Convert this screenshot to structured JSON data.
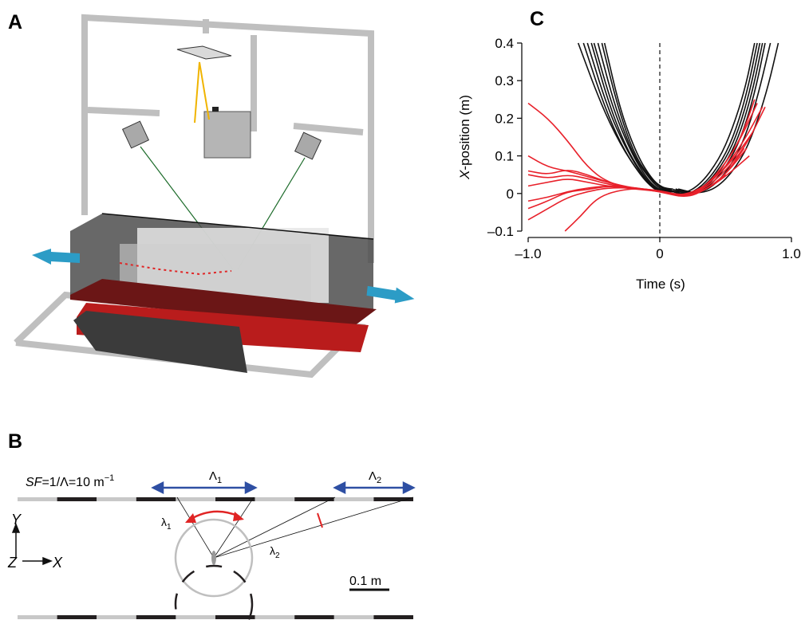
{
  "panels": {
    "a": "A",
    "b": "B",
    "c": "C"
  },
  "panel_b": {
    "sf_prefix": "SF",
    "sf_rest": "=1/Λ=10 m",
    "sf_exp": "−1",
    "Lambda1": "Λ",
    "Lambda1_sub": "1",
    "Lambda2": "Λ",
    "Lambda2_sub": "2",
    "lambda1": "λ",
    "lambda1_sub": "1",
    "lambda2": "λ",
    "lambda2_sub": "2",
    "axis_y": "Y",
    "axis_z": "Z",
    "axis_x": "X",
    "scale_bar": "0.1 m",
    "colors": {
      "dark": "#231f20",
      "light": "#c8c8c8",
      "arrow_blue": "#2e4fa3",
      "arrow_red": "#e02424"
    }
  },
  "chart_data": {
    "type": "line",
    "xlabel": "Time (s)",
    "ylabel_italic": "X",
    "ylabel_rest": "-position (m)",
    "xlim": [
      -1.0,
      1.0
    ],
    "ylim": [
      -0.1,
      0.4
    ],
    "xticks": [
      -1.0,
      0,
      1.0
    ],
    "xtick_labels": [
      "–1.0",
      "0",
      "1.0"
    ],
    "yticks": [
      -0.1,
      0,
      0.1,
      0.2,
      0.3,
      0.4
    ],
    "ytick_labels": [
      "–0.1",
      "0",
      "0.1",
      "0.2",
      "0.3",
      "0.4"
    ],
    "vline_x": 0,
    "colors": {
      "black_series": "#111111",
      "red_series": "#e8202a"
    },
    "series": [
      {
        "color": "black",
        "x": [
          -0.62,
          -0.45,
          -0.3,
          -0.15,
          -0.05,
          0.0,
          0.05,
          0.15
        ],
        "y": [
          0.4,
          0.24,
          0.13,
          0.05,
          0.015,
          0.008,
          0.005,
          0.005
        ]
      },
      {
        "color": "black",
        "x": [
          -0.58,
          -0.42,
          -0.28,
          -0.14,
          -0.05,
          0.0,
          0.05
        ],
        "y": [
          0.4,
          0.23,
          0.12,
          0.045,
          0.013,
          0.006,
          0.005
        ]
      },
      {
        "color": "black",
        "x": [
          -0.55,
          -0.4,
          -0.26,
          -0.12,
          -0.04,
          0.0,
          0.05
        ],
        "y": [
          0.4,
          0.23,
          0.12,
          0.04,
          0.012,
          0.006,
          0.004
        ]
      },
      {
        "color": "black",
        "x": [
          -0.52,
          -0.38,
          -0.24,
          -0.11,
          -0.03,
          0.02,
          0.06
        ],
        "y": [
          0.4,
          0.23,
          0.11,
          0.04,
          0.012,
          0.006,
          0.005
        ]
      },
      {
        "color": "black",
        "x": [
          -0.5,
          -0.36,
          -0.22,
          -0.1,
          -0.02,
          0.03,
          0.07
        ],
        "y": [
          0.4,
          0.23,
          0.11,
          0.04,
          0.013,
          0.008,
          0.007
        ]
      },
      {
        "color": "black",
        "x": [
          -0.47,
          -0.34,
          -0.2,
          -0.08,
          -0.01,
          0.04,
          0.08
        ],
        "y": [
          0.4,
          0.23,
          0.1,
          0.04,
          0.015,
          0.01,
          0.009
        ]
      },
      {
        "color": "black",
        "x": [
          -0.44,
          -0.32,
          -0.19,
          -0.07,
          0.0,
          0.05,
          0.09
        ],
        "y": [
          0.4,
          0.23,
          0.1,
          0.04,
          0.017,
          0.012,
          0.011
        ]
      },
      {
        "color": "black",
        "x": [
          -0.42,
          -0.3,
          -0.17,
          -0.06,
          0.01,
          0.06,
          0.1
        ],
        "y": [
          0.4,
          0.22,
          0.1,
          0.038,
          0.018,
          0.013,
          0.012
        ]
      },
      {
        "color": "black",
        "x": [
          0.05,
          0.15,
          0.3,
          0.45,
          0.55,
          0.65,
          0.72
        ],
        "y": [
          0.005,
          -0.005,
          0.02,
          0.09,
          0.17,
          0.28,
          0.4
        ]
      },
      {
        "color": "black",
        "x": [
          0.05,
          0.18,
          0.33,
          0.48,
          0.58,
          0.67,
          0.74
        ],
        "y": [
          0.005,
          -0.008,
          0.02,
          0.09,
          0.17,
          0.28,
          0.4
        ]
      },
      {
        "color": "black",
        "x": [
          0.07,
          0.2,
          0.35,
          0.5,
          0.6,
          0.69,
          0.76
        ],
        "y": [
          0.008,
          -0.006,
          0.02,
          0.09,
          0.17,
          0.28,
          0.4
        ]
      },
      {
        "color": "black",
        "x": [
          0.08,
          0.22,
          0.37,
          0.52,
          0.62,
          0.71,
          0.78
        ],
        "y": [
          0.009,
          -0.005,
          0.02,
          0.09,
          0.17,
          0.28,
          0.4
        ]
      },
      {
        "color": "black",
        "x": [
          0.1,
          0.24,
          0.39,
          0.54,
          0.64,
          0.73,
          0.8
        ],
        "y": [
          0.011,
          -0.004,
          0.02,
          0.09,
          0.17,
          0.28,
          0.4
        ]
      },
      {
        "color": "black",
        "x": [
          0.12,
          0.26,
          0.42,
          0.57,
          0.67,
          0.76,
          0.84
        ],
        "y": [
          0.012,
          -0.003,
          0.02,
          0.09,
          0.17,
          0.28,
          0.4
        ]
      },
      {
        "color": "black",
        "x": [
          0.14,
          0.3,
          0.46,
          0.62,
          0.72,
          0.82,
          0.9
        ],
        "y": [
          0.012,
          -0.002,
          0.02,
          0.09,
          0.17,
          0.28,
          0.4
        ]
      },
      {
        "color": "red",
        "x": [
          -1.0,
          -0.85,
          -0.7,
          -0.55,
          -0.4,
          -0.2,
          0.0,
          0.2,
          0.35,
          0.5,
          0.62,
          0.72
        ],
        "y": [
          0.24,
          0.2,
          0.14,
          0.07,
          0.03,
          0.012,
          0.008,
          -0.01,
          0.02,
          0.08,
          0.15,
          0.25
        ]
      },
      {
        "color": "red",
        "x": [
          -1.0,
          -0.85,
          -0.7,
          -0.55,
          -0.4,
          -0.2,
          0.0,
          0.2,
          0.35,
          0.5,
          0.62,
          0.74
        ],
        "y": [
          0.1,
          0.07,
          0.06,
          0.045,
          0.03,
          0.012,
          0.008,
          -0.01,
          0.02,
          0.08,
          0.15,
          0.24
        ]
      },
      {
        "color": "red",
        "x": [
          -1.0,
          -0.85,
          -0.7,
          -0.55,
          -0.4,
          -0.2,
          0.0,
          0.2,
          0.35,
          0.5,
          0.64,
          0.78
        ],
        "y": [
          0.06,
          0.05,
          0.065,
          0.05,
          0.03,
          0.014,
          0.008,
          -0.01,
          0.02,
          0.07,
          0.14,
          0.23
        ]
      },
      {
        "color": "red",
        "x": [
          -1.0,
          -0.85,
          -0.7,
          -0.55,
          -0.4,
          -0.2,
          0.0,
          0.2,
          0.35,
          0.5,
          0.66,
          0.8
        ],
        "y": [
          0.05,
          0.04,
          0.05,
          0.04,
          0.025,
          0.012,
          0.008,
          -0.008,
          0.015,
          0.06,
          0.13,
          0.23
        ]
      },
      {
        "color": "red",
        "x": [
          -1.0,
          -0.85,
          -0.7,
          -0.55,
          -0.4,
          -0.2,
          0.0,
          0.2,
          0.35,
          0.5,
          0.64
        ],
        "y": [
          -0.02,
          -0.01,
          0.005,
          0.015,
          0.02,
          0.015,
          0.005,
          -0.012,
          0.01,
          0.05,
          0.12
        ]
      },
      {
        "color": "red",
        "x": [
          -1.0,
          -0.85,
          -0.7,
          -0.55,
          -0.4,
          -0.2,
          0.0,
          0.2,
          0.35,
          0.5,
          0.66
        ],
        "y": [
          -0.04,
          -0.02,
          0.005,
          0.01,
          0.02,
          0.016,
          0.006,
          -0.01,
          0.01,
          0.05,
          0.12
        ]
      },
      {
        "color": "red",
        "x": [
          -1.0,
          -0.85,
          -0.7,
          -0.55,
          -0.4,
          -0.2,
          0.0,
          0.2,
          0.35,
          0.5
        ],
        "y": [
          -0.07,
          -0.04,
          -0.01,
          0.005,
          0.015,
          0.015,
          0.006,
          -0.008,
          0.01,
          0.05
        ]
      },
      {
        "color": "red",
        "x": [
          -1.0,
          -0.85,
          -0.7,
          -0.55,
          -0.4,
          -0.2,
          0.0,
          0.2,
          0.35,
          0.5,
          0.68
        ],
        "y": [
          0.02,
          0.03,
          0.04,
          0.03,
          0.02,
          0.012,
          0.006,
          -0.006,
          0.01,
          0.045,
          0.1
        ]
      },
      {
        "color": "red",
        "x": [
          -0.72,
          -0.6,
          -0.5,
          -0.4,
          -0.25,
          -0.1,
          0.0,
          0.15,
          0.3,
          0.45,
          0.6,
          0.7
        ],
        "y": [
          -0.1,
          -0.06,
          -0.02,
          0.0,
          0.012,
          0.012,
          0.006,
          -0.006,
          0.01,
          0.05,
          0.11,
          0.16
        ]
      }
    ]
  }
}
